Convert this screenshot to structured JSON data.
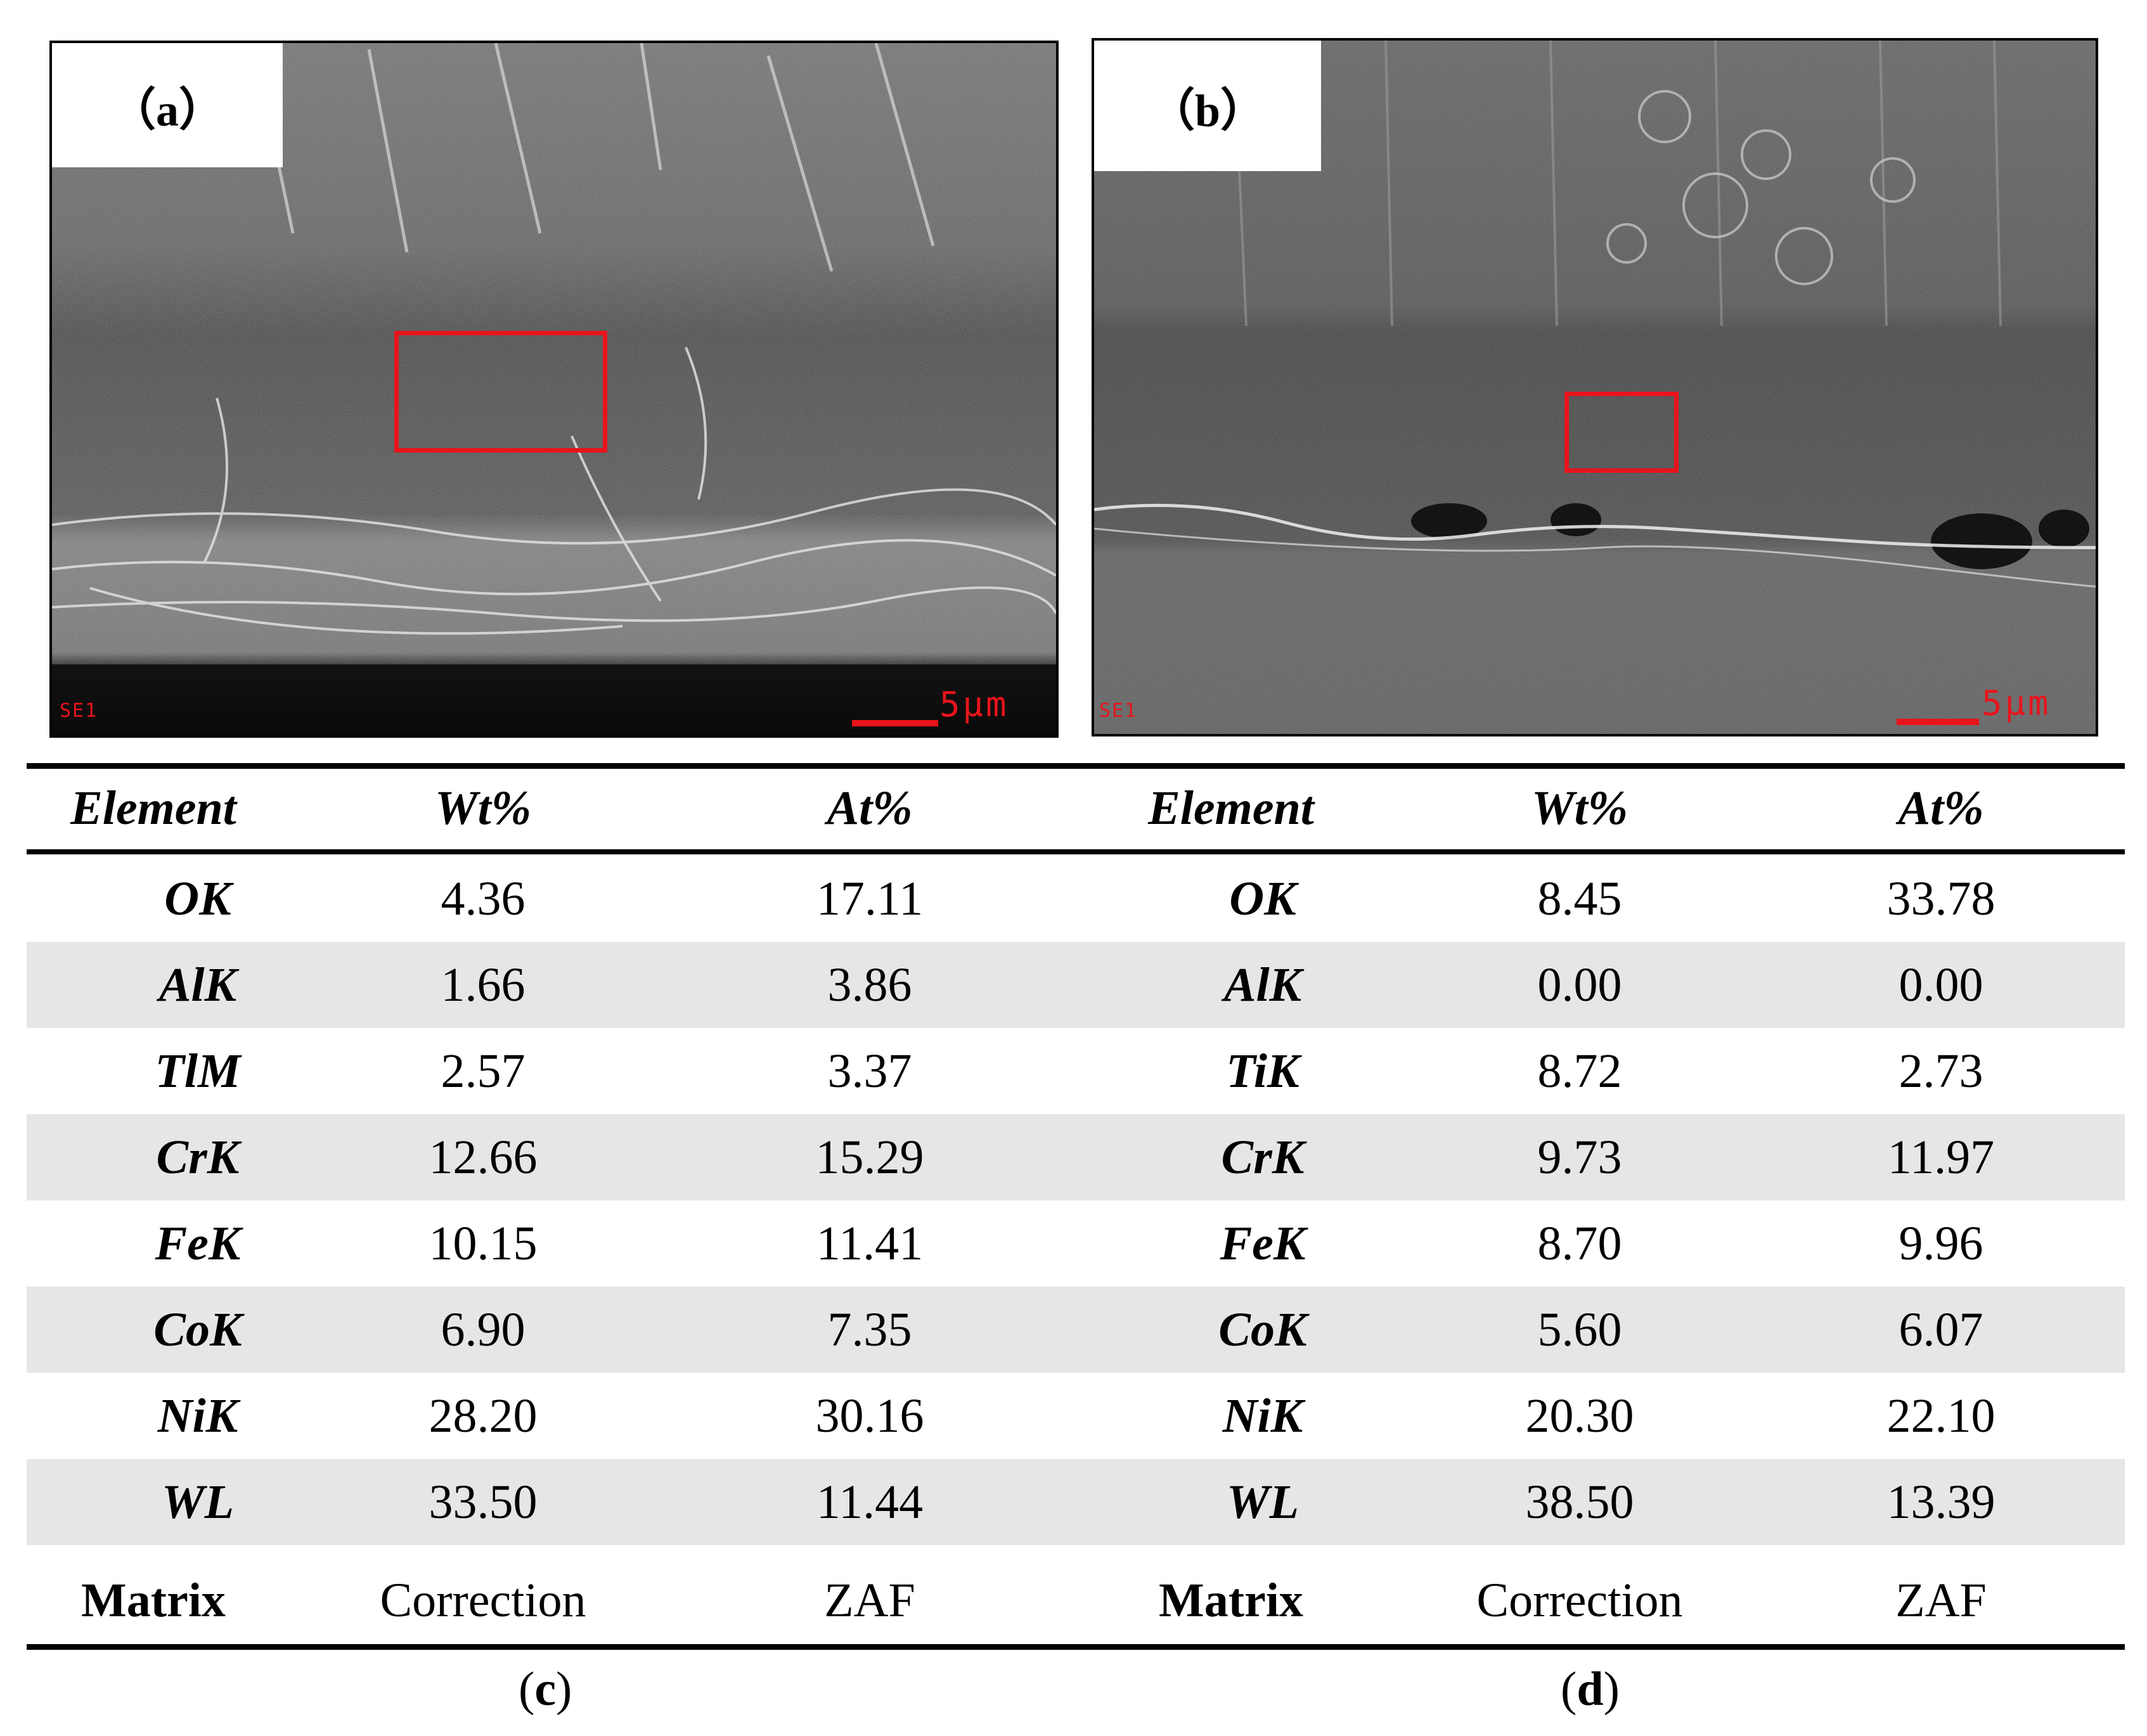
{
  "panels": {
    "a": {
      "label": "（a）",
      "detector": "SE1",
      "scale": "5μm"
    },
    "b": {
      "label": "（b）",
      "detector": "SE1",
      "scale": "5μm"
    }
  },
  "table": {
    "headers": [
      "Element",
      "Wt%",
      "At%",
      "Element",
      "Wt%",
      "At%"
    ],
    "rows": [
      [
        "OK",
        "4.36",
        "17.11",
        "OK",
        "8.45",
        "33.78"
      ],
      [
        "AlK",
        "1.66",
        "3.86",
        "AlK",
        "0.00",
        "0.00"
      ],
      [
        "TlM",
        "2.57",
        "3.37",
        "TiK",
        "8.72",
        "2.73"
      ],
      [
        "CrK",
        "12.66",
        "15.29",
        "CrK",
        "9.73",
        "11.97"
      ],
      [
        "FeK",
        "10.15",
        "11.41",
        "FeK",
        "8.70",
        "9.96"
      ],
      [
        "CoK",
        "6.90",
        "7.35",
        "CoK",
        "5.60",
        "6.07"
      ],
      [
        "NiK",
        "28.20",
        "30.16",
        "NiK",
        "20.30",
        "22.10"
      ],
      [
        "WL",
        "33.50",
        "11.44",
        "WL",
        "38.50",
        "13.39"
      ]
    ],
    "matrix_row": [
      "Matrix",
      "Correction",
      "ZAF",
      "Matrix",
      "Correction",
      "ZAF"
    ]
  },
  "captions": {
    "c": {
      "open": "(",
      "letter": "c",
      "close": ")"
    },
    "d": {
      "open": "(",
      "letter": "d",
      "close": ")"
    }
  }
}
